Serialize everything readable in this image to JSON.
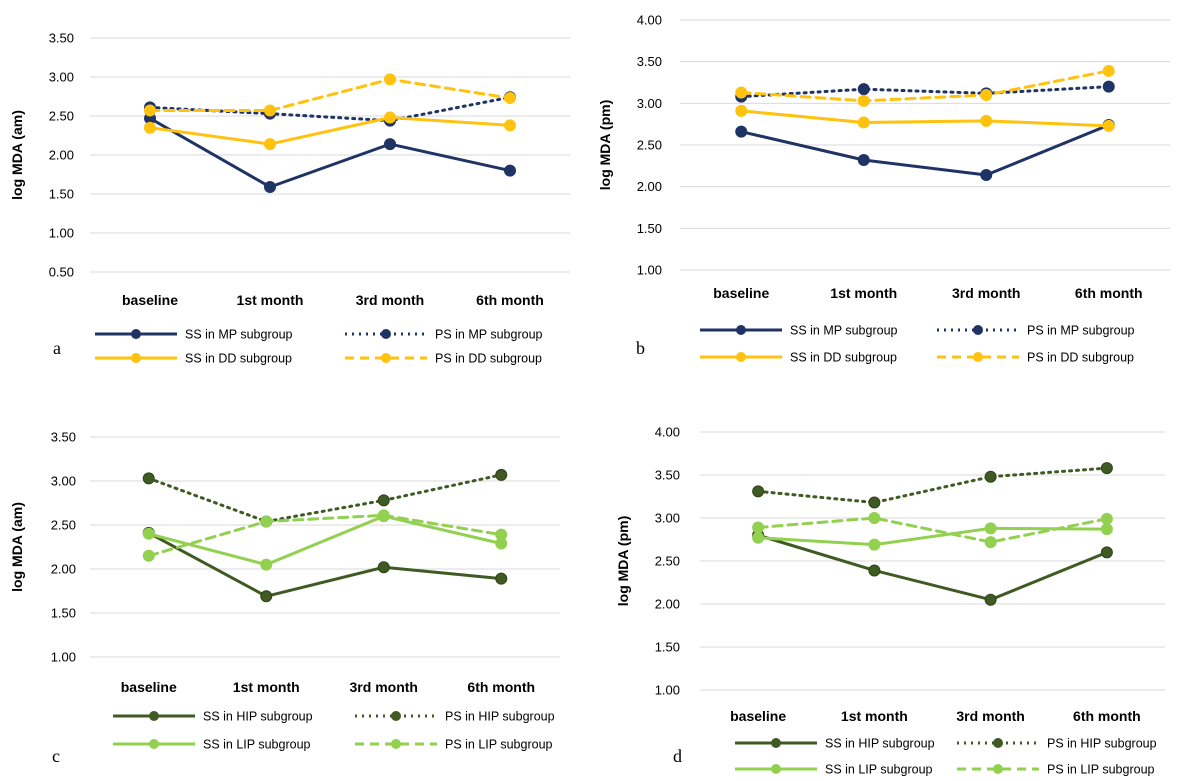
{
  "colors": {
    "mp": "#1f3465",
    "dd": "#ffc20e",
    "hip": "#3f5a22",
    "lip": "#92d050",
    "grid": "#d9d9d9"
  },
  "chart_data": [
    {
      "panel": "a",
      "type": "line",
      "categories": [
        "baseline",
        "1st month",
        "3rd month",
        "6th month"
      ],
      "ylabel": "log MDA (am)",
      "ylim": [
        0.5,
        3.5
      ],
      "yticks": [
        "0.50",
        "1.00",
        "1.50",
        "2.00",
        "2.50",
        "3.00",
        "3.50"
      ],
      "grid": true,
      "legend": "bottom",
      "series": [
        {
          "name": "SS in MP subgroup",
          "values": [
            2.47,
            1.59,
            2.14,
            1.8
          ],
          "color": "#1f3465",
          "style": "solid"
        },
        {
          "name": "PS in MP subgroup",
          "values": [
            2.61,
            2.53,
            2.44,
            2.74
          ],
          "color": "#1f3465",
          "style": "dotted"
        },
        {
          "name": "SS in DD subgroup",
          "values": [
            2.35,
            2.14,
            2.48,
            2.38
          ],
          "color": "#ffc20e",
          "style": "solid"
        },
        {
          "name": "PS in DD subgroup",
          "values": [
            2.57,
            2.57,
            2.97,
            2.73
          ],
          "color": "#ffc20e",
          "style": "dashed"
        }
      ]
    },
    {
      "panel": "b",
      "type": "line",
      "categories": [
        "baseline",
        "1st month",
        "3rd month",
        "6th month"
      ],
      "ylabel": "log MDA (pm)",
      "ylim": [
        1.0,
        4.0
      ],
      "yticks": [
        "1.00",
        "1.50",
        "2.00",
        "2.50",
        "3.00",
        "3.50",
        "4.00"
      ],
      "grid": true,
      "legend": "bottom",
      "series": [
        {
          "name": "SS in MP subgroup",
          "values": [
            2.66,
            2.32,
            2.14,
            2.74
          ],
          "color": "#1f3465",
          "style": "solid"
        },
        {
          "name": "PS in MP subgroup",
          "values": [
            3.08,
            3.17,
            3.12,
            3.2
          ],
          "color": "#1f3465",
          "style": "dotted"
        },
        {
          "name": "SS in DD subgroup",
          "values": [
            2.91,
            2.77,
            2.79,
            2.73
          ],
          "color": "#ffc20e",
          "style": "solid"
        },
        {
          "name": "PS in DD subgroup",
          "values": [
            3.13,
            3.03,
            3.1,
            3.39
          ],
          "color": "#ffc20e",
          "style": "dashed"
        }
      ]
    },
    {
      "panel": "c",
      "type": "line",
      "categories": [
        "baseline",
        "1st month",
        "3rd month",
        "6th month"
      ],
      "ylabel": "log MDA (am)",
      "ylim": [
        1.0,
        3.5
      ],
      "yticks": [
        "1.00",
        "1.50",
        "2.00",
        "2.50",
        "3.00",
        "3.50"
      ],
      "grid": true,
      "legend": "bottom",
      "series": [
        {
          "name": "SS in HIP subgroup",
          "values": [
            2.41,
            1.69,
            2.02,
            1.89
          ],
          "color": "#3f5a22",
          "style": "solid"
        },
        {
          "name": "PS in HIP subgroup",
          "values": [
            3.03,
            2.54,
            2.78,
            3.07
          ],
          "color": "#3f5a22",
          "style": "dotted"
        },
        {
          "name": "SS in LIP subgroup",
          "values": [
            2.4,
            2.05,
            2.6,
            2.29
          ],
          "color": "#92d050",
          "style": "solid"
        },
        {
          "name": "PS in LIP subgroup",
          "values": [
            2.15,
            2.54,
            2.61,
            2.39
          ],
          "color": "#92d050",
          "style": "dashed"
        }
      ]
    },
    {
      "panel": "d",
      "type": "line",
      "categories": [
        "baseline",
        "1st month",
        "3rd month",
        "6th month"
      ],
      "ylabel": "log MDA (pm)",
      "ylim": [
        1.0,
        4.0
      ],
      "yticks": [
        "1.00",
        "1.50",
        "2.00",
        "2.50",
        "3.00",
        "3.50",
        "4.00"
      ],
      "grid": true,
      "legend": "bottom",
      "series": [
        {
          "name": "SS in HIP subgroup",
          "values": [
            2.8,
            2.39,
            2.05,
            2.6
          ],
          "color": "#3f5a22",
          "style": "solid"
        },
        {
          "name": "PS in HIP subgroup",
          "values": [
            3.31,
            3.18,
            3.48,
            3.58
          ],
          "color": "#3f5a22",
          "style": "dotted"
        },
        {
          "name": "SS in LIP subgroup",
          "values": [
            2.77,
            2.69,
            2.88,
            2.87
          ],
          "color": "#92d050",
          "style": "solid"
        },
        {
          "name": "PS in LIP subgroup",
          "values": [
            2.89,
            3.0,
            2.72,
            2.99
          ],
          "color": "#92d050",
          "style": "dashed"
        }
      ]
    }
  ]
}
